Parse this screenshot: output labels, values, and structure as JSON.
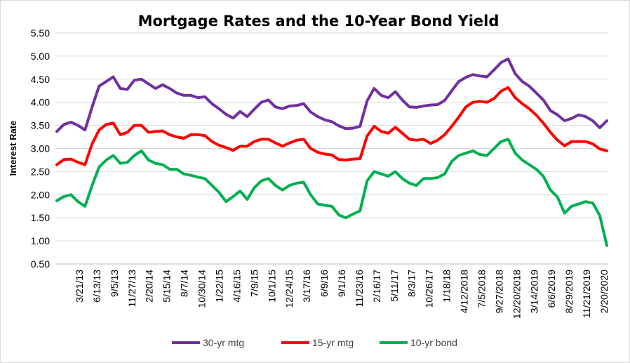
{
  "chart_data": {
    "type": "line",
    "title": "Mortgage Rates and the 10-Year Bond Yield",
    "ylabel": "Interest Rate",
    "xlabel": "",
    "ylim": [
      0.5,
      5.5
    ],
    "yticks": [
      "5.50",
      "5.00",
      "4.50",
      "4.00",
      "3.50",
      "3.00",
      "2.50",
      "2.00",
      "1.50",
      "1.00",
      "0.50"
    ],
    "x_tick_labels": [
      "3/21/13",
      "6/13/13",
      "9/5/13",
      "11/27/13",
      "2/20/14",
      "5/15/14",
      "8/7/14",
      "10/30/14",
      "1/22/15",
      "4/16/15",
      "7/9/15",
      "10/1/15",
      "12/24/15",
      "3/17/16",
      "6/9/16",
      "9/1/16",
      "11/23/16",
      "2/16/17",
      "5/11/17",
      "8/3/17",
      "10/26/17",
      "1/18/18",
      "4/12/2018",
      "7/5/2018",
      "9/27/2018",
      "12/20/2018",
      "3/14/2019",
      "6/6/2019",
      "8/29/2019",
      "11/21/2019",
      "2/20/2020"
    ],
    "grid": "horizontal",
    "legend_position": "bottom",
    "series": [
      {
        "name": "30-yr mtg",
        "color": "#7030a0",
        "values": [
          3.37,
          3.52,
          3.57,
          3.5,
          3.4,
          3.9,
          4.35,
          4.45,
          4.55,
          4.3,
          4.28,
          4.48,
          4.5,
          4.4,
          4.3,
          4.38,
          4.3,
          4.2,
          4.15,
          4.15,
          4.1,
          4.12,
          3.97,
          3.86,
          3.74,
          3.66,
          3.8,
          3.69,
          3.85,
          4.0,
          4.05,
          3.9,
          3.86,
          3.92,
          3.93,
          3.97,
          3.79,
          3.69,
          3.62,
          3.58,
          3.49,
          3.43,
          3.44,
          3.48,
          4.03,
          4.3,
          4.15,
          4.1,
          4.23,
          4.05,
          3.9,
          3.89,
          3.92,
          3.94,
          3.95,
          4.04,
          4.25,
          4.45,
          4.54,
          4.6,
          4.57,
          4.55,
          4.7,
          4.86,
          4.94,
          4.62,
          4.45,
          4.35,
          4.2,
          4.05,
          3.82,
          3.73,
          3.6,
          3.65,
          3.73,
          3.69,
          3.6,
          3.45,
          3.6
        ]
      },
      {
        "name": "15-yr mtg",
        "color": "#ff0000",
        "values": [
          2.65,
          2.76,
          2.77,
          2.7,
          2.65,
          3.1,
          3.4,
          3.52,
          3.55,
          3.3,
          3.35,
          3.5,
          3.5,
          3.35,
          3.37,
          3.38,
          3.3,
          3.25,
          3.22,
          3.3,
          3.3,
          3.28,
          3.15,
          3.07,
          3.02,
          2.96,
          3.05,
          3.05,
          3.15,
          3.2,
          3.2,
          3.12,
          3.05,
          3.12,
          3.18,
          3.2,
          3.0,
          2.92,
          2.88,
          2.86,
          2.76,
          2.75,
          2.77,
          2.78,
          3.27,
          3.48,
          3.37,
          3.33,
          3.46,
          3.33,
          3.2,
          3.18,
          3.2,
          3.11,
          3.18,
          3.3,
          3.48,
          3.68,
          3.9,
          4.0,
          4.02,
          4.0,
          4.08,
          4.24,
          4.32,
          4.1,
          3.97,
          3.86,
          3.72,
          3.55,
          3.35,
          3.18,
          3.06,
          3.15,
          3.15,
          3.15,
          3.1,
          2.99,
          2.95
        ]
      },
      {
        "name": "10-yr bond",
        "color": "#00b050",
        "values": [
          1.87,
          1.96,
          2.0,
          1.85,
          1.75,
          2.2,
          2.6,
          2.75,
          2.85,
          2.68,
          2.7,
          2.85,
          2.95,
          2.75,
          2.68,
          2.65,
          2.55,
          2.55,
          2.45,
          2.42,
          2.38,
          2.35,
          2.2,
          2.05,
          1.85,
          1.96,
          2.08,
          1.9,
          2.15,
          2.3,
          2.35,
          2.2,
          2.1,
          2.2,
          2.25,
          2.27,
          2.0,
          1.8,
          1.77,
          1.75,
          1.56,
          1.5,
          1.58,
          1.65,
          2.3,
          2.5,
          2.45,
          2.4,
          2.5,
          2.35,
          2.25,
          2.2,
          2.35,
          2.35,
          2.37,
          2.45,
          2.72,
          2.85,
          2.9,
          2.95,
          2.87,
          2.85,
          3.0,
          3.15,
          3.2,
          2.9,
          2.75,
          2.65,
          2.55,
          2.4,
          2.1,
          1.95,
          1.6,
          1.75,
          1.8,
          1.85,
          1.82,
          1.55,
          0.9
        ]
      }
    ]
  }
}
